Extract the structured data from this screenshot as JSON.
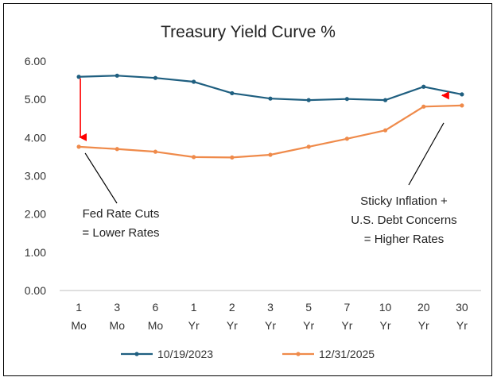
{
  "chart_data": {
    "type": "line",
    "title": "Treasury Yield Curve %",
    "xlabel": "",
    "ylabel": "",
    "ylim": [
      0,
      6
    ],
    "y_ticks": [
      "0.00",
      "1.00",
      "2.00",
      "3.00",
      "4.00",
      "5.00",
      "6.00"
    ],
    "categories": [
      {
        "num": "1",
        "unit": "Mo"
      },
      {
        "num": "3",
        "unit": "Mo"
      },
      {
        "num": "6",
        "unit": "Mo"
      },
      {
        "num": "1",
        "unit": "Yr"
      },
      {
        "num": "2",
        "unit": "Yr"
      },
      {
        "num": "3",
        "unit": "Yr"
      },
      {
        "num": "5",
        "unit": "Yr"
      },
      {
        "num": "7",
        "unit": "Yr"
      },
      {
        "num": "10",
        "unit": "Yr"
      },
      {
        "num": "20",
        "unit": "Yr"
      },
      {
        "num": "30",
        "unit": "Yr"
      }
    ],
    "series": [
      {
        "name": "10/19/2023",
        "color": "#1f5f80",
        "values": [
          5.59,
          5.62,
          5.56,
          5.46,
          5.16,
          5.02,
          4.98,
          5.01,
          4.98,
          5.33,
          5.13
        ]
      },
      {
        "name": "12/31/2025",
        "color": "#ef8a4a",
        "values": [
          3.76,
          3.7,
          3.63,
          3.49,
          3.48,
          3.55,
          3.76,
          3.97,
          4.19,
          4.81,
          4.84
        ]
      }
    ],
    "legend_position": "bottom",
    "annotations": [
      {
        "lines": [
          "Fed Rate Cuts",
          "= Lower Rates"
        ],
        "arrow_color": "#ff0000",
        "arrow_category": 0
      },
      {
        "lines": [
          "Sticky Inflation +",
          "U.S. Debt Concerns",
          "= Higher Rates"
        ],
        "arrow_color": "#ff0000",
        "arrow_category": 9
      }
    ]
  }
}
